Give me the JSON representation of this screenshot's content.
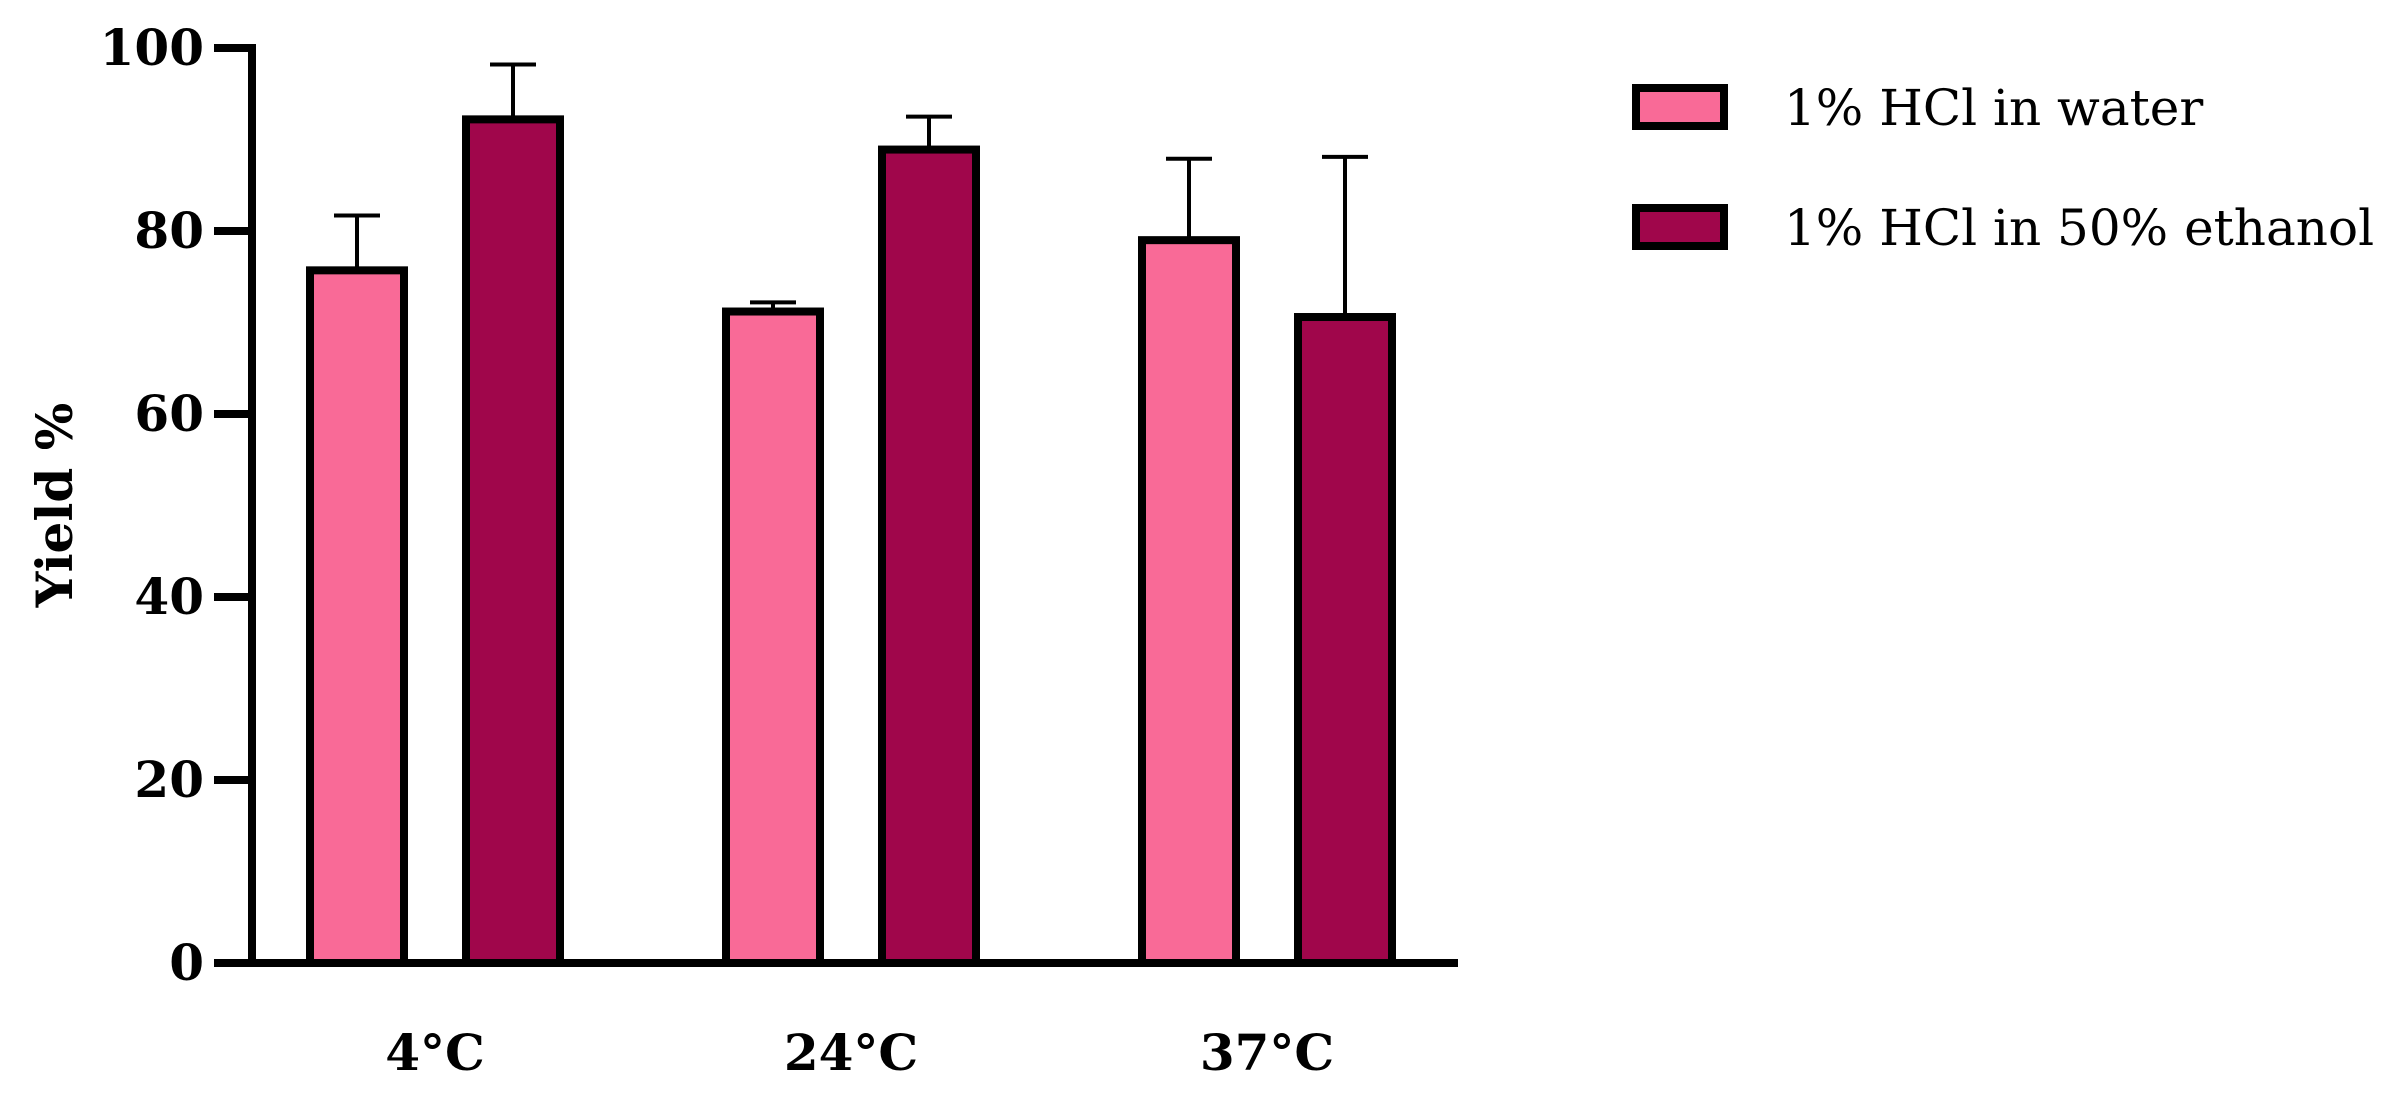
{
  "chart_data": {
    "type": "bar",
    "title": "",
    "xlabel": "",
    "ylabel": "Yield %",
    "ylim": [
      0,
      100
    ],
    "yticks": [
      "0",
      "20",
      "40",
      "60",
      "80",
      "100"
    ],
    "categories": [
      "4°C",
      "24°C",
      "37°C"
    ],
    "series": [
      {
        "name": "1% HCl in water",
        "color": "#F96A97",
        "values": [
          75.7,
          71.2,
          79.0
        ],
        "errors": [
          6.0,
          1.0,
          8.9
        ]
      },
      {
        "name": "1% HCl in 50% ethanol",
        "color": "#A0064B",
        "values": [
          92.2,
          88.9,
          70.6
        ],
        "errors": [
          6.0,
          3.6,
          17.5
        ]
      }
    ],
    "legend_position": "top-right",
    "grid": false,
    "error_bars": "upper"
  }
}
